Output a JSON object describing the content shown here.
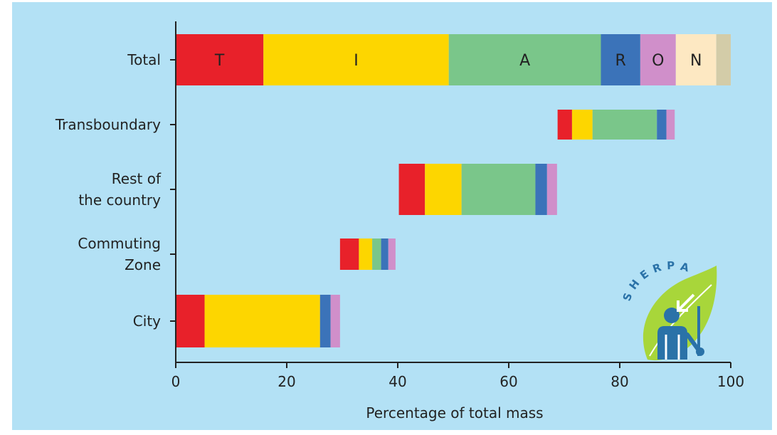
{
  "chart_data": {
    "type": "bar",
    "orientation": "horizontal",
    "stacked": true,
    "layout": "waterfall",
    "title": "",
    "xlabel": "Percentage of total mass",
    "ylabel": "",
    "xlim": [
      0,
      100
    ],
    "xticks": [
      0,
      20,
      40,
      60,
      80,
      100
    ],
    "grid": false,
    "legend": "none",
    "categories": [
      "Total",
      "Transboundary",
      "Rest of the country",
      "Commuting Zone",
      "City"
    ],
    "category_lines": [
      [
        "Total"
      ],
      [
        "Transboundary"
      ],
      [
        "Rest of",
        "the country"
      ],
      [
        "Commuting",
        "Zone"
      ],
      [
        "City"
      ]
    ],
    "series": [
      {
        "label": "T",
        "color": "#e8212a",
        "values": [
          15.8,
          2.6,
          4.7,
          3.4,
          5.2
        ]
      },
      {
        "label": "I",
        "color": "#fdd600",
        "values": [
          33.4,
          3.7,
          6.6,
          2.4,
          20.8
        ]
      },
      {
        "label": "A",
        "color": "#7ac68a",
        "values": [
          27.4,
          11.6,
          13.3,
          1.6,
          0
        ]
      },
      {
        "label": "R",
        "color": "#3b73b9",
        "values": [
          7.1,
          1.7,
          2.1,
          1.3,
          1.9
        ]
      },
      {
        "label": "O",
        "color": "#d08fca",
        "values": [
          6.4,
          1.5,
          1.8,
          1.3,
          1.7
        ]
      },
      {
        "label": "N",
        "color": "#fde8c2",
        "values": [
          7.3,
          0,
          0,
          0,
          0
        ]
      },
      {
        "label": "",
        "color": "#d3cca8",
        "values": [
          2.6,
          0,
          0,
          0,
          0
        ]
      }
    ],
    "start_values": [
      0,
      68.8,
      40.2,
      29.6,
      0
    ],
    "colors": {
      "background": "#b3e1f5",
      "axis": "#222222",
      "logo_leaf": "#a8d63a",
      "logo_figure": "#2a72a8"
    },
    "logo_text": "SHERPA"
  }
}
